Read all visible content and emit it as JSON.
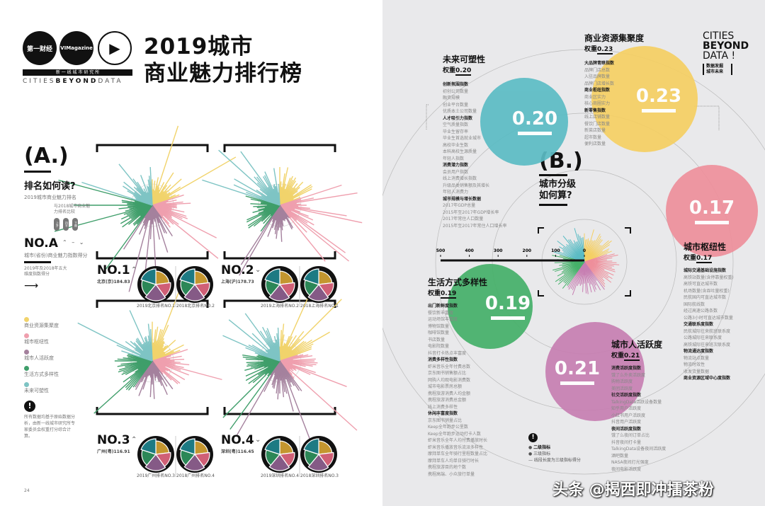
{
  "left": {
    "logos": [
      "第一财经",
      "VIMagazine",
      "新一线"
    ],
    "logo_sub": "新 一 线 城 市 研 究 所",
    "logo_tagline_a": "CITIES",
    "logo_tagline_b": "BEYOND",
    "logo_tagline_c": "DATA",
    "title_line1": "2019城市",
    "title_line2": "商业魅力排行榜",
    "section": "(A.)",
    "how_to_read": "排名如何读?",
    "how_sub": "2019城市商业魅力排名",
    "compare_note": "与2018城市商业魅力排名比较",
    "arrows": [
      "上升",
      "持平",
      "下降"
    ],
    "no_a": "NO.A",
    "no_a_sub": "城市(省份)商业魅力指数得分",
    "line_note": "2019年及2018年五大维度指数得分",
    "legend": [
      {
        "label": "商业资源集聚度",
        "color": "#f1d36b"
      },
      {
        "label": "城市枢纽性",
        "color": "#ef9fae"
      },
      {
        "label": "城市人活跃度",
        "color": "#a4819d"
      },
      {
        "label": "生活方式多样性",
        "color": "#3f9e6a"
      },
      {
        "label": "未来可塑性",
        "color": "#7ec4c4"
      }
    ],
    "note": "所有数据均基于原始数据分析，由新一线城市研究所专家委员会权重打分综合计算。",
    "page_number": "24",
    "cities": [
      {
        "rank": "NO.1",
        "trend": "up",
        "sub": "北京(京)184.83",
        "pie_labels": [
          "2019北京排名NO.1",
          "2018北京排名NO.2"
        ]
      },
      {
        "rank": "NO.2",
        "trend": "down",
        "sub": "上海(沪)178.73",
        "pie_labels": [
          "2019上海排名NO.2",
          "2018上海排名NO.1"
        ]
      },
      {
        "rank": "NO.3",
        "trend": "up",
        "sub": "广州(粤)116.91",
        "pie_labels": [
          "2019广州排名NO.3",
          "2018广州排名NO.4"
        ]
      },
      {
        "rank": "NO.4",
        "trend": "down",
        "sub": "深圳(粤)116.45",
        "pie_labels": [
          "2019深圳排名NO.4",
          "2018深圳排名NO.3"
        ]
      }
    ]
  },
  "right": {
    "brand": [
      "CITIES",
      "BEYOND",
      "DATA !"
    ],
    "brand_box": [
      "数据发掘",
      "城市未来"
    ],
    "section": "(B.)",
    "question": [
      "城市分级",
      "如何算?"
    ],
    "axis_ticks": [
      "500",
      "400",
      "300",
      "200",
      "100",
      "0"
    ],
    "dimensions": [
      {
        "key": "future",
        "title": "未来可塑性",
        "weight_label": "权重",
        "weight": "0.20",
        "color": "#5bbcc4",
        "items": [
          {
            "t": "创新氛围指数",
            "b": true
          },
          {
            "t": "初创公司数量"
          },
          {
            "t": "融资规模"
          },
          {
            "t": "创业平台数量"
          },
          {
            "t": "优质本土公司数量"
          },
          {
            "t": "人才吸引力指数",
            "b": true
          },
          {
            "t": "空气质量指数"
          },
          {
            "t": "毕业生留存率"
          },
          {
            "t": "毕业生首选就业城市"
          },
          {
            "t": "高校毕业生数"
          },
          {
            "t": "本科高校生源质量"
          },
          {
            "t": "年轻人指数"
          },
          {
            "t": "消费潜力指数",
            "b": true
          },
          {
            "t": "会员用户指数"
          },
          {
            "t": "线上消费增长指数"
          },
          {
            "t": "升级品类销售额及其增长"
          },
          {
            "t": "年轻人消费力"
          },
          {
            "t": "城市规模与增长数据",
            "b": true
          },
          {
            "t": "2017年GDP总量"
          },
          {
            "t": "2015年至2017年GDP增长率"
          },
          {
            "t": "2017年常住人口数量"
          },
          {
            "t": "2015年至2017年常住人口增长率"
          }
        ]
      },
      {
        "key": "commerce",
        "title": "商业资源集聚度",
        "weight_label": "权重",
        "weight": "0.23",
        "color": "#f5cf63",
        "items": [
          {
            "t": "大品牌青睐指数",
            "b": true
          },
          {
            "t": "品牌门店总数"
          },
          {
            "t": "入驻品牌数量"
          },
          {
            "t": "品牌门店增长数"
          },
          {
            "t": "商业枢纽指数",
            "b": true
          },
          {
            "t": "商业区实力"
          },
          {
            "t": "核心商圈实力"
          },
          {
            "t": "新零售指数",
            "b": true
          },
          {
            "t": "线上店铺数量"
          },
          {
            "t": "餐饮门店数量"
          },
          {
            "t": "新菜店数量"
          },
          {
            "t": "超市数量"
          },
          {
            "t": "便利店数量"
          }
        ]
      },
      {
        "key": "hub",
        "title": "城市枢纽性",
        "weight_label": "权重",
        "weight": "0.17",
        "color": "#ee8f9b",
        "items": [
          {
            "t": "城际交通基础设施指数",
            "b": true
          },
          {
            "t": "高铁站数量(含停靠量权重)"
          },
          {
            "t": "高铁可直达城市数"
          },
          {
            "t": "机场数量(含吞吐量权重)"
          },
          {
            "t": "民航国内可直达城市数"
          },
          {
            "t": "国际航线数"
          },
          {
            "t": "经过高速公路条数"
          },
          {
            "t": "公路3小时可直达城市数量"
          },
          {
            "t": "交通联系度指数",
            "b": true
          },
          {
            "t": "民航城际往来航班联系度"
          },
          {
            "t": "公路城际往来联系度"
          },
          {
            "t": "高铁城际往来班次联系度"
          },
          {
            "t": "物流通达度指数",
            "b": true
          },
          {
            "t": "物流站点数量"
          },
          {
            "t": "物流时效性"
          },
          {
            "t": "收发货量数据"
          },
          {
            "t": "商业资源区域中心度指数",
            "b": true
          }
        ]
      },
      {
        "key": "lifestyle",
        "title": "生活方式多样性",
        "weight_label": "权重",
        "weight": "0.19",
        "color": "#45b069",
        "items": [
          {
            "t": "出门新鲜度指数",
            "b": true
          },
          {
            "t": "餐饮新丰富度"
          },
          {
            "t": "运动场馆丰富度"
          },
          {
            "t": "博物馆数量"
          },
          {
            "t": "咖啡馆数量"
          },
          {
            "t": "书店数量"
          },
          {
            "t": "电影院数量"
          },
          {
            "t": "抖音打卡热点丰富度"
          },
          {
            "t": "消费多样性指数",
            "b": true
          },
          {
            "t": "虾米音乐全年付费总数"
          },
          {
            "t": "京东图书销售额占比"
          },
          {
            "t": "网购人均观电影消费数"
          },
          {
            "t": "城市电影票房总额"
          },
          {
            "t": "携程旅游消费人均金额"
          },
          {
            "t": "携程旅游消费总金额"
          },
          {
            "t": "线上消费多样性"
          },
          {
            "t": "休闲丰富度指数",
            "b": true
          },
          {
            "t": "京东图书销量占比"
          },
          {
            "t": "Keep全年跑步公里数"
          },
          {
            "t": "Keep全年跑步运动打卡人数"
          },
          {
            "t": "虾米音乐全年人均付费播放时长"
          },
          {
            "t": "虾米音乐播放音乐流派多样性"
          },
          {
            "t": "摩拜单车全年骑行里程数量占比"
          },
          {
            "t": "摩拜单车人均单日骑行时长"
          },
          {
            "t": "携程旅游目的地个数"
          },
          {
            "t": "携程高端、小众旅行单量"
          }
        ]
      },
      {
        "key": "activity",
        "title": "城市人活跃度",
        "weight_label": "权重",
        "weight": "0.21",
        "color": "#c77fb2",
        "items": [
          {
            "t": "消费活跃度指数",
            "b": true
          },
          {
            "t": "饿了么外卖活跃度"
          },
          {
            "t": "购物活跃度"
          },
          {
            "t": "美团活跃度"
          },
          {
            "t": "社交活跃度指数",
            "b": true
          },
          {
            "t": "TalkingData活跃设备数量"
          },
          {
            "t": "知乎用户活跃度"
          },
          {
            "t": "小红书用户活跃度"
          },
          {
            "t": "抖音用户活跃度"
          },
          {
            "t": "夜间活跃度指数",
            "b": true
          },
          {
            "t": "饿了么夜间订单占比"
          },
          {
            "t": "抖音夜间打卡量"
          },
          {
            "t": "TalkingData设备夜间活跃度"
          },
          {
            "t": "酒吧数量"
          },
          {
            "t": "NASA夜间灯光强度"
          },
          {
            "t": "夜间电影活跃度"
          }
        ]
      }
    ],
    "legend": [
      "二级指标",
      "三级指标",
      "线段长度为三级指标得分"
    ]
  },
  "pie_weights": {
    "order": [
      "商业资源集聚度",
      "城市枢纽性",
      "城市人活跃度",
      "生活方式多样性",
      "未来可塑性"
    ],
    "values": [
      0.23,
      0.17,
      0.21,
      0.19,
      0.2
    ],
    "colors": [
      "#c4962f",
      "#d05f76",
      "#855a86",
      "#2c8757",
      "#1d7a83"
    ]
  },
  "watermark": "头条 @揭西即冲擂茶粉"
}
